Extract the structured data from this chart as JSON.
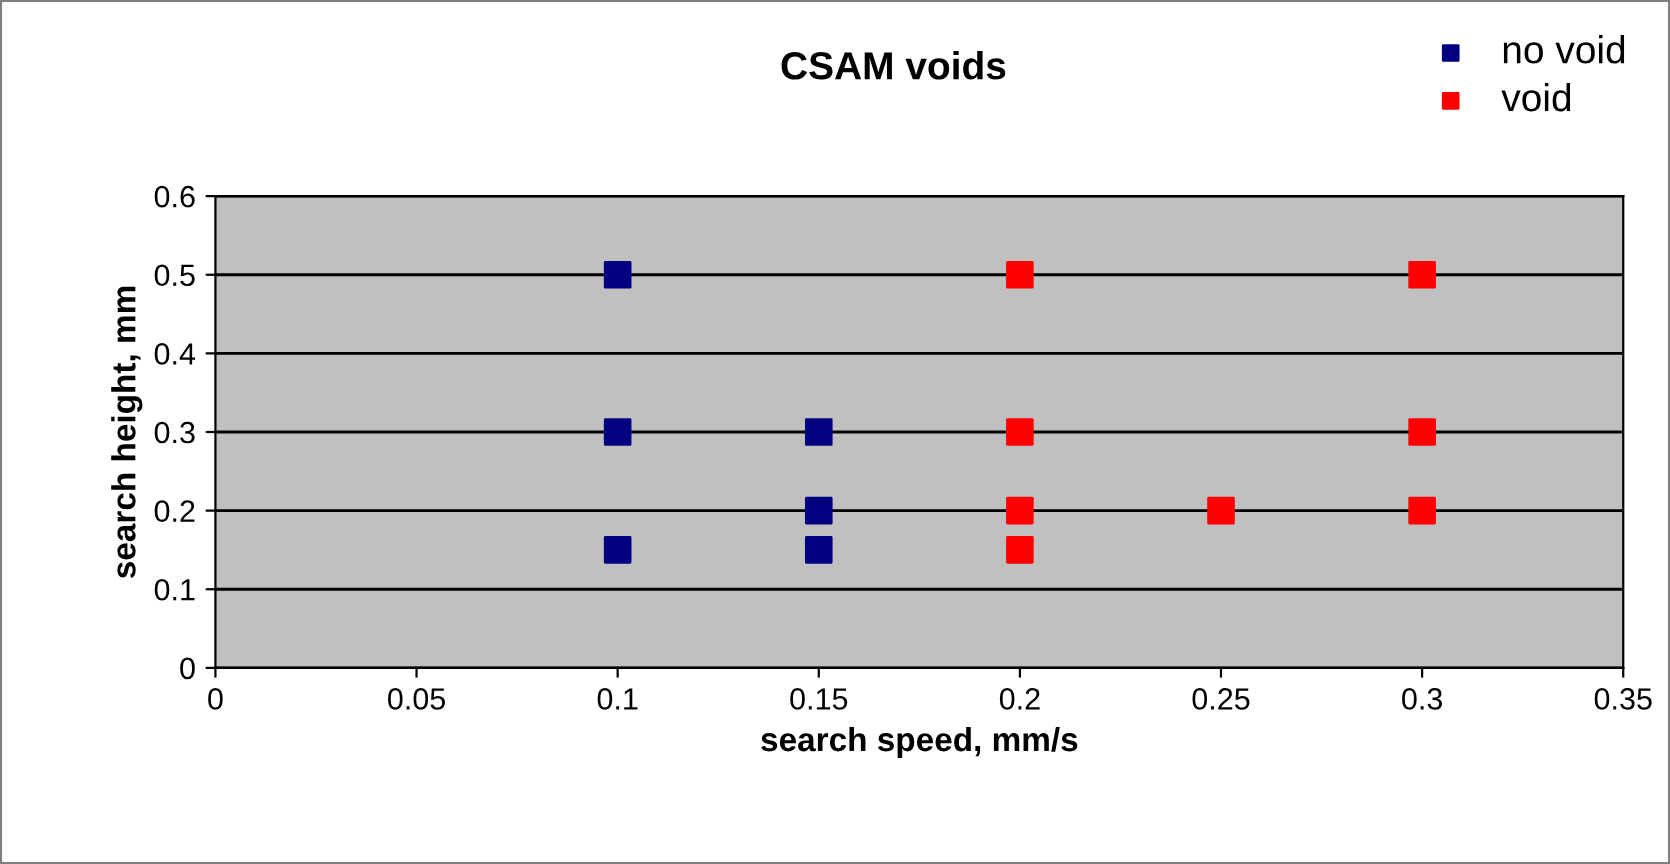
{
  "chart_data": {
    "type": "scatter",
    "title": "CSAM voids",
    "xlabel": "search speed, mm/s",
    "ylabel": "search height, mm",
    "series": [
      {
        "name": "no void",
        "color": "#000080",
        "x": [
          0.1,
          0.1,
          0.1,
          0.15,
          0.15,
          0.15
        ],
        "values": [
          0.5,
          0.3,
          0.15,
          0.3,
          0.2,
          0.15
        ]
      },
      {
        "name": "void",
        "color": "#ff0000",
        "x": [
          0.2,
          0.2,
          0.2,
          0.2,
          0.25,
          0.3,
          0.3,
          0.3
        ],
        "values": [
          0.5,
          0.3,
          0.2,
          0.15,
          0.2,
          0.5,
          0.3,
          0.2
        ]
      }
    ],
    "xlim": [
      0,
      0.35
    ],
    "xticks": [
      0,
      0.05,
      0.1,
      0.15,
      0.2,
      0.25,
      0.3,
      0.35
    ],
    "ylim": [
      0,
      0.6
    ],
    "yticks": [
      0,
      0.1,
      0.2,
      0.3,
      0.4,
      0.5,
      0.6
    ],
    "grid": "y",
    "legend": "top right",
    "marker": "square"
  }
}
